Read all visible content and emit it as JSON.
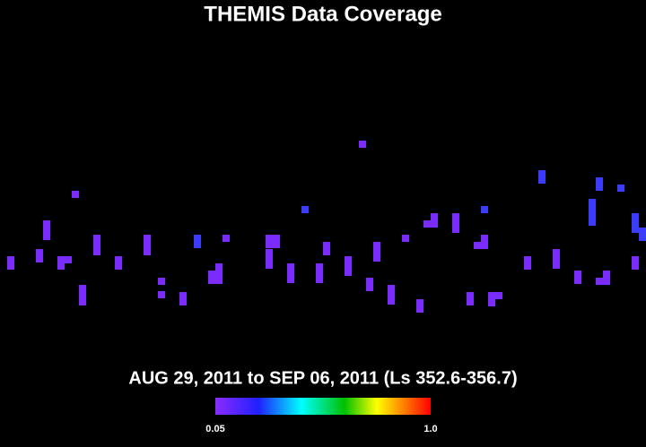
{
  "title": "THEMIS Data Coverage",
  "date_range": "AUG 29, 2011 to SEP 06, 2011 (Ls 352.6-356.7)",
  "colorbar": {
    "range": [
      0.05,
      1
    ],
    "ticks": [
      0.05,
      {
        "value": 1,
        "label": "1.0"
      }
    ]
  }
}
